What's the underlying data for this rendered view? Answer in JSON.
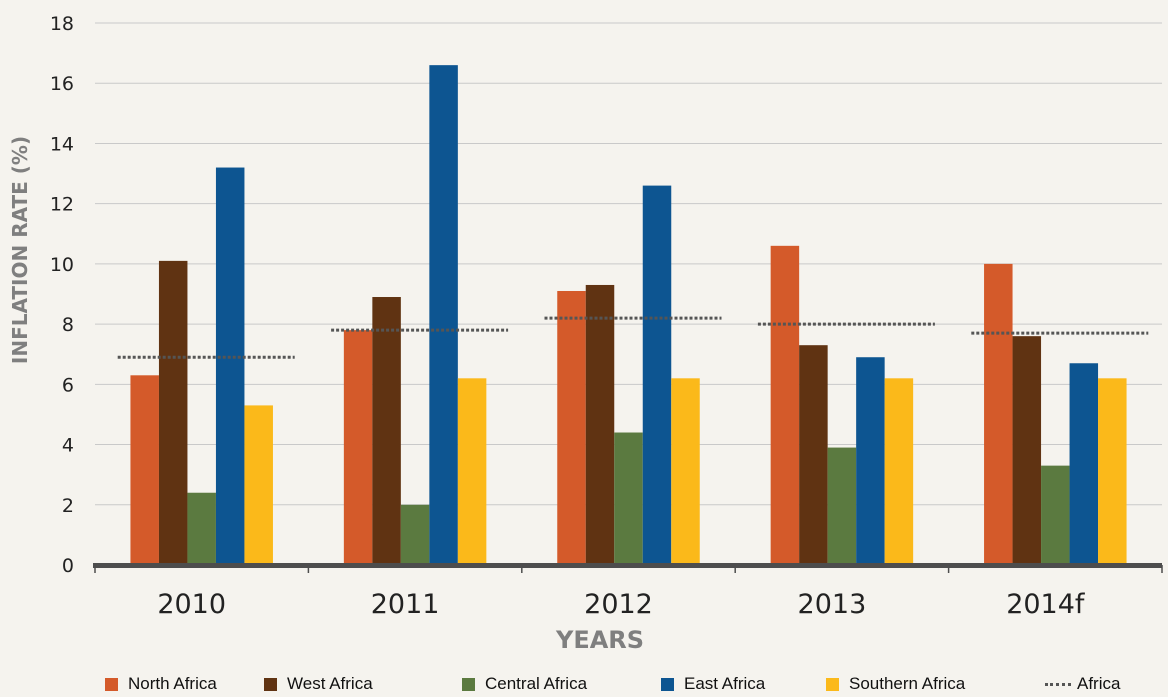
{
  "chart_data": {
    "type": "bar",
    "categories": [
      "2010",
      "2011",
      "2012",
      "2013",
      "2014f"
    ],
    "series": [
      {
        "name": "North Africa",
        "color": "#d45a2a",
        "values": [
          6.3,
          7.8,
          9.1,
          10.6,
          10.0
        ]
      },
      {
        "name": "West Africa",
        "color": "#603312",
        "values": [
          10.1,
          8.9,
          9.3,
          7.3,
          7.6
        ]
      },
      {
        "name": "Central Africa",
        "color": "#5b7a40",
        "values": [
          2.4,
          2.0,
          4.4,
          3.9,
          3.3
        ]
      },
      {
        "name": "East Africa",
        "color": "#0d5591",
        "values": [
          13.2,
          16.6,
          12.6,
          6.9,
          6.7
        ]
      },
      {
        "name": "Southern Africa",
        "color": "#fbb91a",
        "values": [
          5.3,
          6.2,
          6.2,
          6.2,
          6.2
        ]
      }
    ],
    "line_series": {
      "name": "Africa",
      "style": "dotted",
      "color": "#555555",
      "values": [
        6.9,
        7.8,
        8.2,
        8.0,
        7.7
      ]
    },
    "title": "",
    "xlabel": "YEARS",
    "ylabel": "INFLATION RATE (%)",
    "ylim": [
      0,
      18
    ],
    "yticks": [
      0,
      2,
      4,
      6,
      8,
      10,
      12,
      14,
      16,
      18
    ],
    "grid": true,
    "legend_position": "bottom"
  }
}
